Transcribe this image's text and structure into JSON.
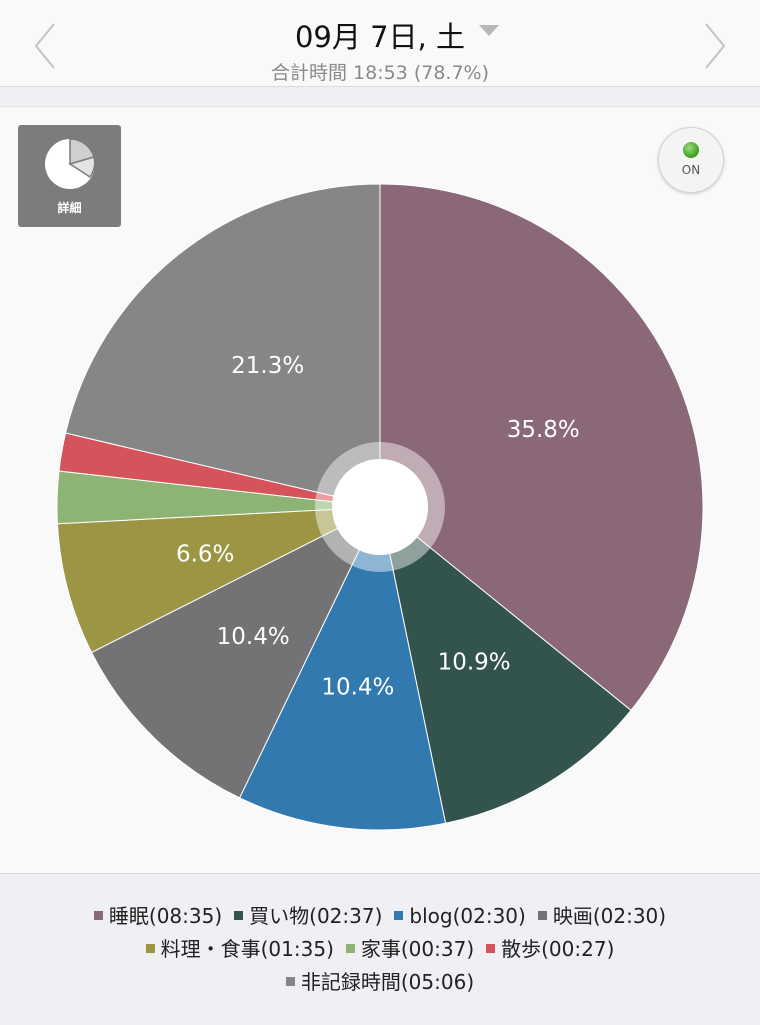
{
  "header": {
    "date_title": "09月 7日, 土",
    "subtitle": "合計時間 18:53 (78.7%)"
  },
  "controls": {
    "detail_label": "詳細",
    "toggle_label": "ON"
  },
  "colors": {
    "sleep": "#8a6878",
    "shopping": "#32544c",
    "blog": "#3279b0",
    "movie": "#737375",
    "cooking": "#9c9644",
    "housework": "#8db474",
    "walk": "#d5535a",
    "unrecorded": "#868686"
  },
  "chart_data": {
    "type": "pie",
    "start": "12 o'clock, clockwise",
    "center": "white hole with light grey ring",
    "slices": [
      {
        "label": "睡眠(08:35)",
        "value": 35.8,
        "data_label": "35.8%",
        "color": "#8a6878"
      },
      {
        "label": "買い物(02:37)",
        "value": 10.9,
        "data_label": "10.9%",
        "color": "#32544c"
      },
      {
        "label": "blog(02:30)",
        "value": 10.4,
        "data_label": "10.4%",
        "color": "#3279b0"
      },
      {
        "label": "映画(02:30)",
        "value": 10.4,
        "data_label": "10.4%",
        "color": "#737375"
      },
      {
        "label": "料理・食事(01:35)",
        "value": 6.6,
        "data_label": "6.6%",
        "color": "#9c9644"
      },
      {
        "label": "家事(00:37)",
        "value": 2.6,
        "data_label": "",
        "color": "#8db474"
      },
      {
        "label": "散歩(00:27)",
        "value": 1.9,
        "data_label": "",
        "color": "#d5535a"
      },
      {
        "label": "非記録時間(05:06)",
        "value": 21.3,
        "data_label": "21.3%",
        "color": "#868686"
      }
    ],
    "legend_rows": [
      [
        0,
        1,
        2,
        3
      ],
      [
        4,
        5,
        6
      ],
      [
        7
      ]
    ]
  }
}
